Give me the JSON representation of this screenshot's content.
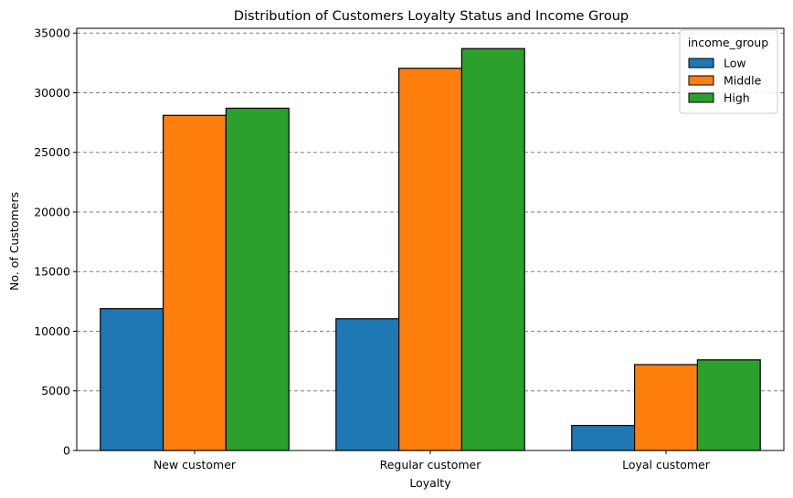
{
  "chart_data": {
    "type": "bar",
    "title": "Distribution of Customers Loyalty Status and Income Group",
    "xlabel": "Loyalty",
    "ylabel": "No. of Customers",
    "categories": [
      "New customer",
      "Regular customer",
      "Loyal customer"
    ],
    "series": [
      {
        "name": "Low",
        "color": "#1f77b4",
        "values": [
          11900,
          11050,
          2100
        ]
      },
      {
        "name": "Middle",
        "color": "#ff7f0e",
        "values": [
          28100,
          32050,
          7200
        ]
      },
      {
        "name": "High",
        "color": "#2ca02c",
        "values": [
          28700,
          33700,
          7600
        ]
      }
    ],
    "legend": {
      "title": "income_group",
      "position": "top-right"
    },
    "ylim": [
      0,
      35400
    ],
    "yticks": [
      0,
      5000,
      10000,
      15000,
      20000,
      25000,
      30000,
      35000
    ],
    "grid": {
      "y": true,
      "style": "dashed",
      "color": "#808080"
    }
  }
}
